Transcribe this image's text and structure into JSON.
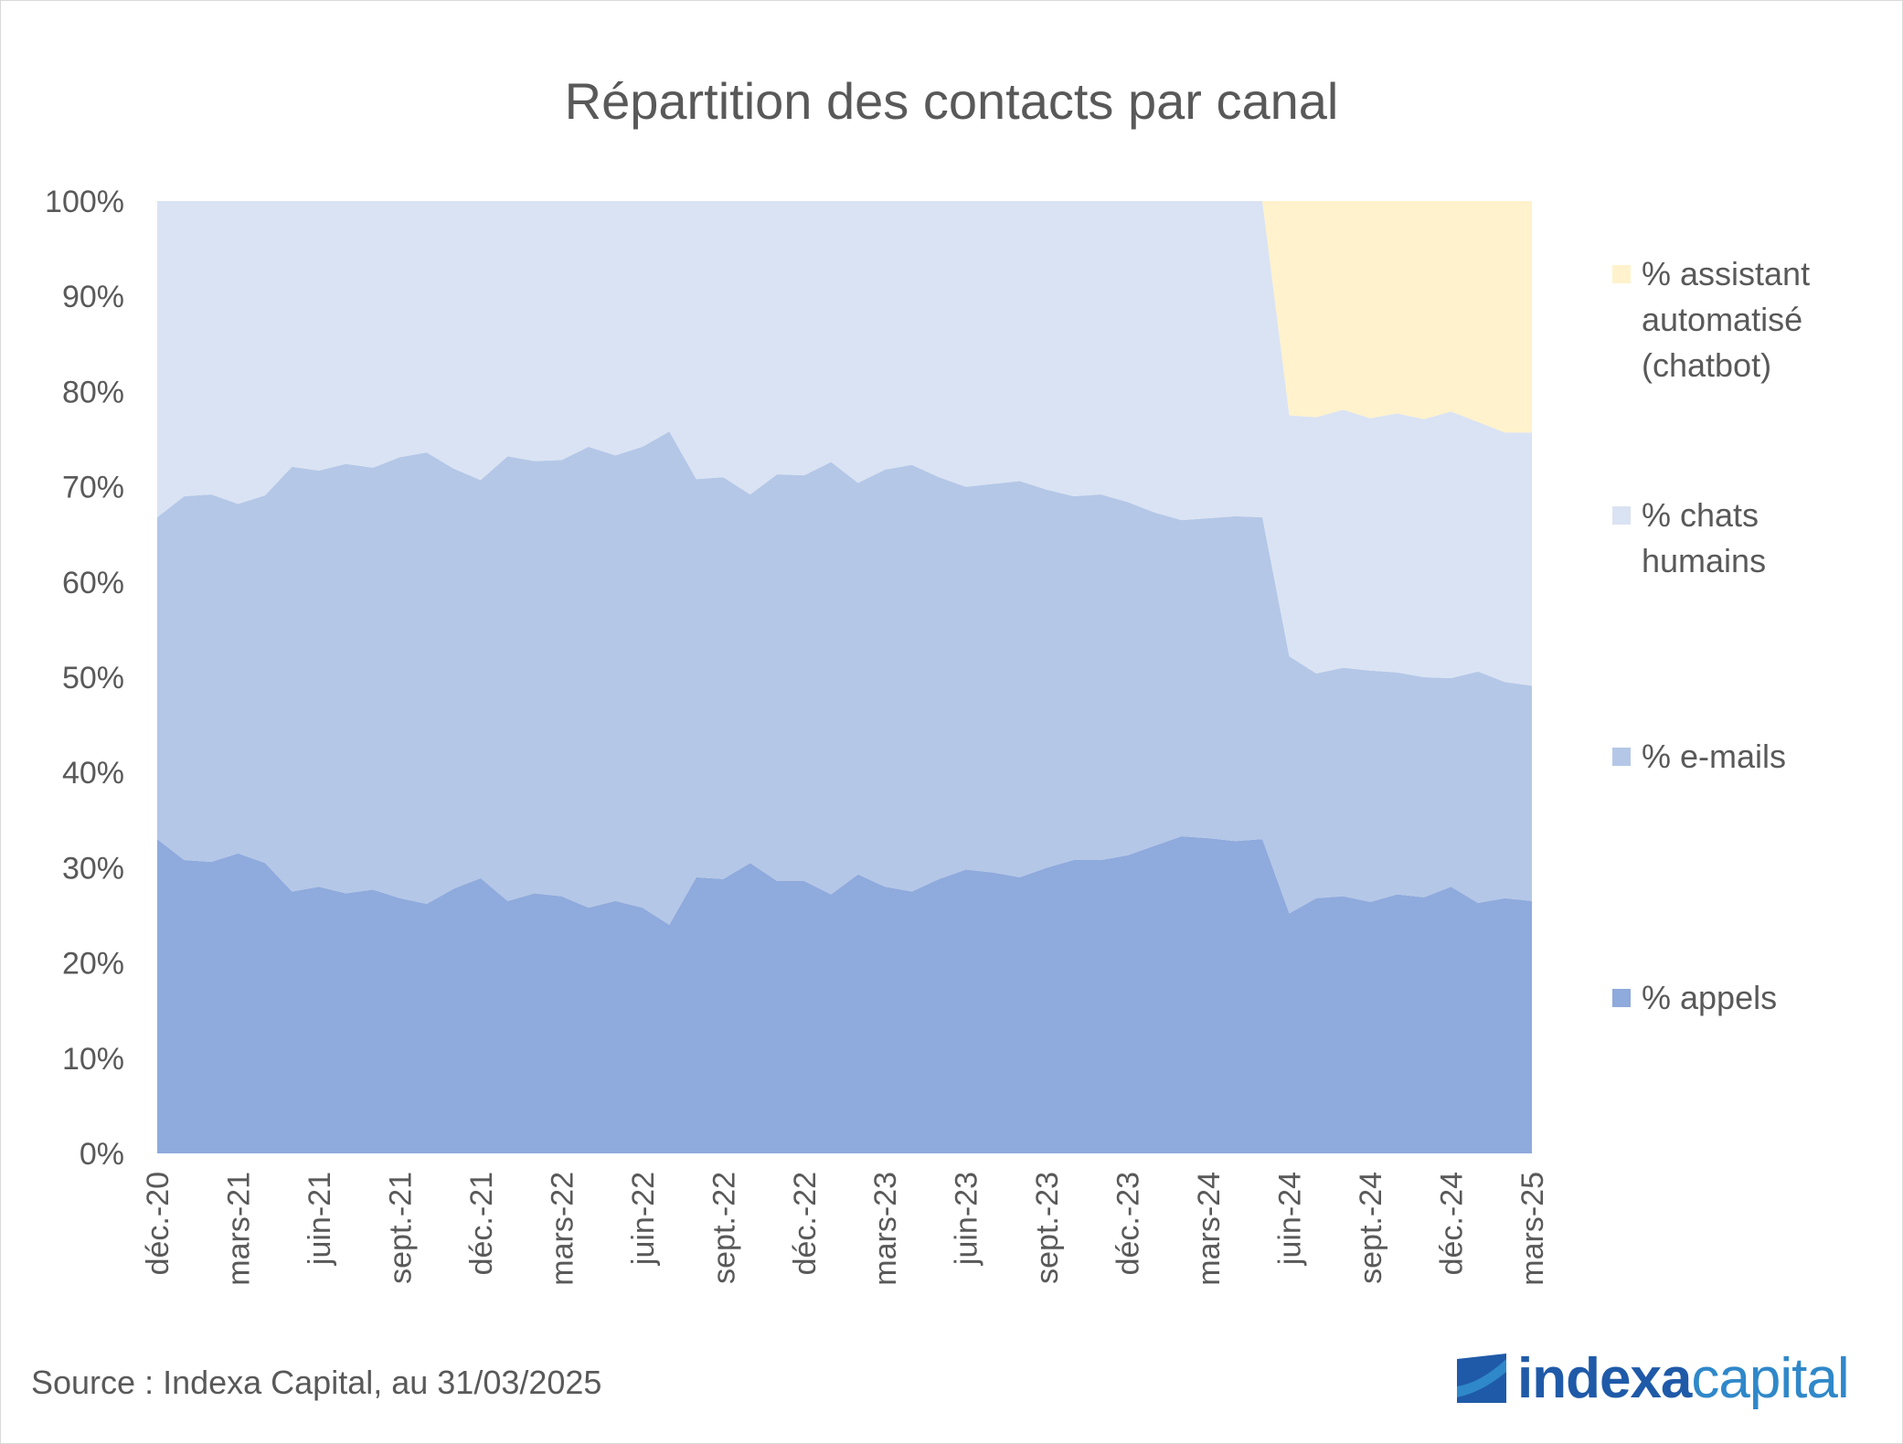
{
  "logo": {
    "word_a": "indexa",
    "word_b": "capital",
    "colors": {
      "dark": "#1f5aa8",
      "light": "#2f88c9"
    }
  },
  "source": "Source : Indexa Capital, au 31/03/2025",
  "chart_data": {
    "type": "area",
    "stacked": true,
    "title": "Répartition des contacts par canal",
    "xlabel": "",
    "ylabel": "",
    "ylim": [
      0,
      100
    ],
    "y_ticks": [
      "0%",
      "10%",
      "20%",
      "30%",
      "40%",
      "50%",
      "60%",
      "70%",
      "80%",
      "90%",
      "100%"
    ],
    "x_tick_labels": [
      "déc.-20",
      "mars-21",
      "juin-21",
      "sept.-21",
      "déc.-21",
      "mars-22",
      "juin-22",
      "sept.-22",
      "déc.-22",
      "mars-23",
      "juin-23",
      "sept.-23",
      "déc.-23",
      "mars-24",
      "juin-24",
      "sept.-24",
      "déc.-24",
      "mars-25"
    ],
    "x_tick_every": 3,
    "n_points": 52,
    "legend_position": "right",
    "series": [
      {
        "name": "% appels",
        "color": "#8faadc",
        "values": [
          33.0,
          30.8,
          30.6,
          31.5,
          30.5,
          27.5,
          28.0,
          27.3,
          27.7,
          26.8,
          26.2,
          27.8,
          28.9,
          26.5,
          27.3,
          27.0,
          25.8,
          26.5,
          25.8,
          24.0,
          29.0,
          28.8,
          30.5,
          28.6,
          28.6,
          27.2,
          29.3,
          28.0,
          27.5,
          28.8,
          29.8,
          29.5,
          29.0,
          30.0,
          30.8,
          30.8,
          31.3,
          32.3,
          33.3,
          33.1,
          32.8,
          33.0,
          25.2,
          26.8,
          27.0,
          26.4,
          27.2,
          26.9,
          28.0,
          26.3,
          26.8,
          26.5
        ]
      },
      {
        "name": "% e-mails",
        "color": "#b4c7e7",
        "values": [
          33.8,
          38.2,
          38.6,
          36.7,
          38.6,
          44.6,
          43.7,
          45.1,
          44.3,
          46.3,
          47.4,
          44.1,
          41.8,
          46.7,
          45.4,
          45.8,
          48.4,
          46.8,
          48.4,
          51.8,
          41.8,
          42.2,
          38.7,
          42.7,
          42.6,
          45.4,
          41.1,
          43.8,
          44.8,
          42.2,
          40.2,
          40.8,
          41.6,
          39.7,
          38.2,
          38.4,
          37.1,
          35.0,
          33.2,
          33.6,
          34.1,
          33.8,
          27.0,
          23.6,
          24.0,
          24.3,
          23.3,
          23.1,
          21.9,
          24.3,
          22.7,
          22.6
        ]
      },
      {
        "name": "% chats humains",
        "color": "#dae3f3",
        "values": [
          33.2,
          31.0,
          30.8,
          31.8,
          30.9,
          27.9,
          28.3,
          27.6,
          28.0,
          26.9,
          26.4,
          28.1,
          29.3,
          26.8,
          27.3,
          27.2,
          25.8,
          26.7,
          25.8,
          24.2,
          29.2,
          29.0,
          30.8,
          28.7,
          28.8,
          27.4,
          29.6,
          28.2,
          27.7,
          29.0,
          30.0,
          29.7,
          29.4,
          30.3,
          31.0,
          30.8,
          31.6,
          32.7,
          33.5,
          33.3,
          33.1,
          33.2,
          25.3,
          26.9,
          27.1,
          26.5,
          27.2,
          27.1,
          28.0,
          26.2,
          26.2,
          26.6
        ]
      },
      {
        "name": "% assistant automatisé (chatbot)",
        "legend_lines": [
          "% assistant",
          "automatisé",
          "(chatbot)"
        ],
        "color": "#fff2cc",
        "values": [
          0,
          0,
          0,
          0,
          0,
          0,
          0,
          0,
          0,
          0,
          0,
          0,
          0,
          0,
          0,
          0,
          0,
          0,
          0,
          0,
          0,
          0,
          0,
          0,
          0,
          0,
          0,
          0,
          0,
          0,
          0,
          0,
          0,
          0,
          0,
          0,
          0,
          0,
          0,
          0,
          0,
          0,
          22.5,
          22.7,
          21.9,
          22.8,
          22.3,
          22.9,
          22.1,
          23.2,
          24.3,
          24.3
        ]
      }
    ],
    "legend": [
      {
        "series": 3,
        "lines": [
          "% assistant",
          "automatisé",
          "(chatbot)"
        ]
      },
      {
        "series": 2,
        "lines": [
          "% chats",
          "humains"
        ]
      },
      {
        "series": 1,
        "lines": [
          "% e-mails"
        ]
      },
      {
        "series": 0,
        "lines": [
          "% appels"
        ]
      }
    ]
  }
}
